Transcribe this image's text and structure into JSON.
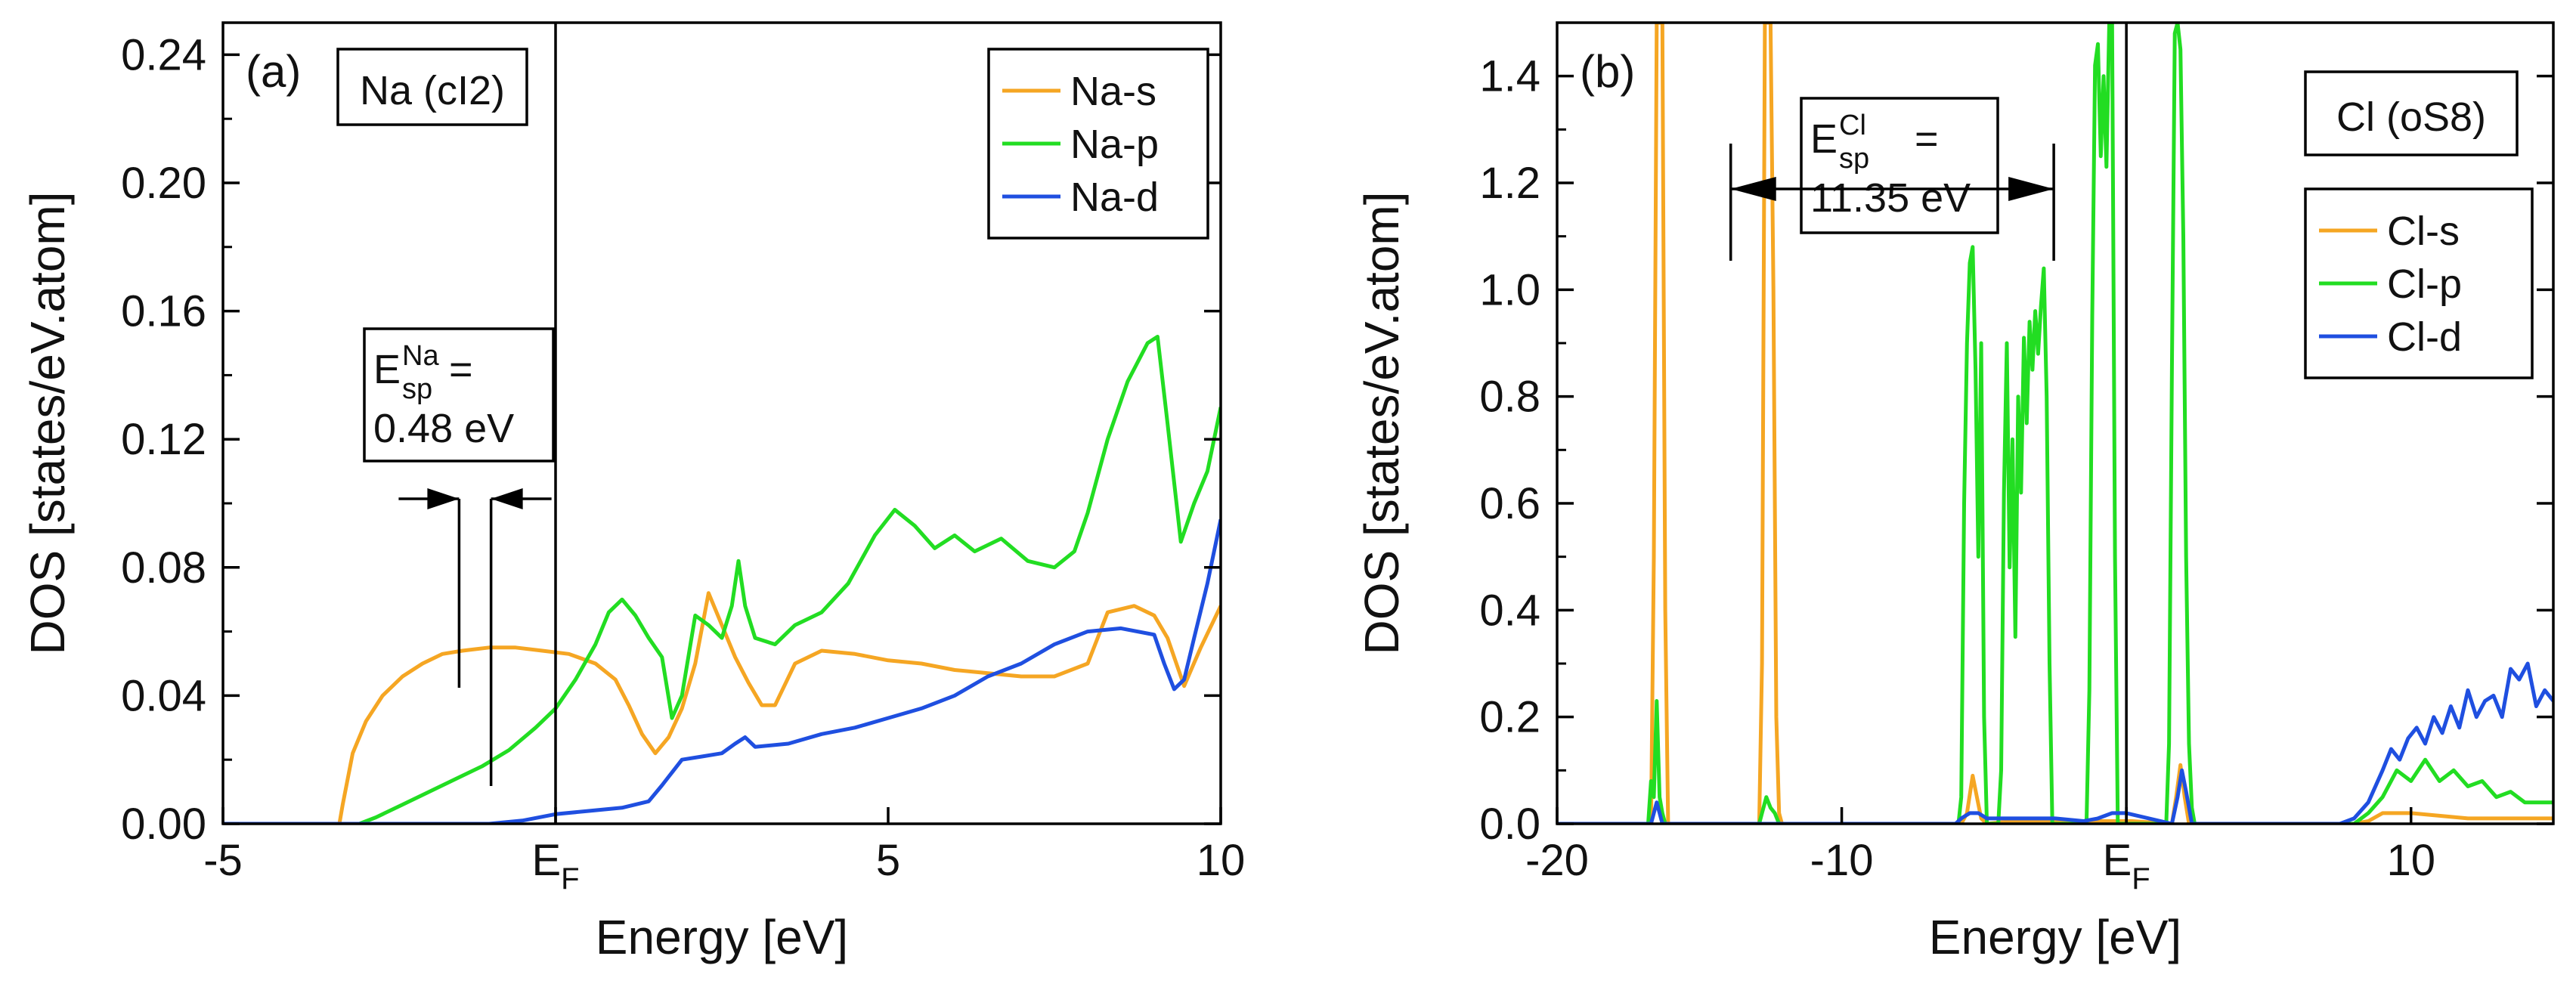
{
  "chart_data": [
    {
      "type": "line",
      "panel_label": "(a)",
      "structure_label": "Na (cI2)",
      "xlabel": "Energy [eV]",
      "ylabel": "DOS [states/eV.atom]",
      "xlim": [
        -5,
        10
      ],
      "ylim": [
        0,
        0.25
      ],
      "x_ticks": [
        -5,
        0,
        5,
        10
      ],
      "x_tick_labels": [
        "-5",
        "E_F",
        "5",
        "10"
      ],
      "y_ticks": [
        0.0,
        0.04,
        0.08,
        0.12,
        0.16,
        0.2,
        0.24
      ],
      "y_tick_labels": [
        "0.00",
        "0.04",
        "0.08",
        "0.12",
        "0.16",
        "0.20",
        "0.24"
      ],
      "fermi_line_at": 0,
      "legend": [
        "Na-s",
        "Na-p",
        "Na-d"
      ],
      "gap_annotation": {
        "symbol": "E",
        "subscript": "sp",
        "superscript": "Na",
        "equals": "=",
        "value": "0.48 eV",
        "from": -1.45,
        "to": -0.97
      },
      "series": [
        {
          "name": "Na-s",
          "color": "#f5a623",
          "x": [
            -5,
            -3.25,
            -3.2,
            -3.05,
            -2.85,
            -2.6,
            -2.3,
            -2.0,
            -1.7,
            -1.4,
            -1.0,
            -0.6,
            -0.2,
            0.2,
            0.6,
            0.9,
            1.1,
            1.3,
            1.5,
            1.7,
            1.9,
            2.1,
            2.3,
            2.5,
            2.7,
            2.9,
            3.1,
            3.3,
            3.6,
            4.0,
            4.5,
            5.0,
            5.5,
            6.0,
            6.5,
            7.0,
            7.5,
            8.0,
            8.3,
            8.7,
            9.0,
            9.2,
            9.45,
            9.7,
            10
          ],
          "y": [
            0,
            0,
            0.006,
            0.022,
            0.032,
            0.04,
            0.046,
            0.05,
            0.053,
            0.054,
            0.055,
            0.055,
            0.054,
            0.053,
            0.05,
            0.045,
            0.037,
            0.028,
            0.022,
            0.027,
            0.036,
            0.05,
            0.072,
            0.062,
            0.052,
            0.044,
            0.037,
            0.037,
            0.05,
            0.054,
            0.053,
            0.051,
            0.05,
            0.048,
            0.047,
            0.046,
            0.046,
            0.05,
            0.066,
            0.068,
            0.065,
            0.058,
            0.043,
            0.055,
            0.068
          ]
        },
        {
          "name": "Na-p",
          "color": "#22dd22",
          "x": [
            -5,
            -2.95,
            -2.7,
            -2.3,
            -1.9,
            -1.5,
            -1.1,
            -0.7,
            -0.3,
            0.0,
            0.3,
            0.6,
            0.8,
            1.0,
            1.2,
            1.4,
            1.6,
            1.75,
            1.9,
            2.1,
            2.3,
            2.5,
            2.65,
            2.75,
            2.85,
            3.0,
            3.3,
            3.6,
            4.0,
            4.4,
            4.8,
            5.1,
            5.4,
            5.7,
            6.0,
            6.3,
            6.7,
            7.1,
            7.5,
            7.8,
            8.0,
            8.3,
            8.6,
            8.9,
            9.05,
            9.2,
            9.4,
            9.6,
            9.8,
            10
          ],
          "y": [
            0,
            0,
            0.002,
            0.006,
            0.01,
            0.014,
            0.018,
            0.023,
            0.03,
            0.036,
            0.045,
            0.056,
            0.066,
            0.07,
            0.065,
            0.058,
            0.052,
            0.033,
            0.04,
            0.065,
            0.062,
            0.058,
            0.068,
            0.082,
            0.068,
            0.058,
            0.056,
            0.062,
            0.066,
            0.075,
            0.09,
            0.098,
            0.093,
            0.086,
            0.09,
            0.085,
            0.089,
            0.082,
            0.08,
            0.085,
            0.097,
            0.12,
            0.138,
            0.15,
            0.152,
            0.125,
            0.088,
            0.1,
            0.11,
            0.13
          ]
        },
        {
          "name": "Na-d",
          "color": "#1f4fe0",
          "x": [
            -5,
            -1.0,
            -0.5,
            0.0,
            0.5,
            1.0,
            1.4,
            1.6,
            1.9,
            2.2,
            2.5,
            2.7,
            2.85,
            3.0,
            3.5,
            4.0,
            4.5,
            5.0,
            5.5,
            6.0,
            6.5,
            7.0,
            7.5,
            8.0,
            8.5,
            9.0,
            9.15,
            9.3,
            9.45,
            9.6,
            9.8,
            10
          ],
          "y": [
            0,
            0,
            0.001,
            0.003,
            0.004,
            0.005,
            0.007,
            0.012,
            0.02,
            0.021,
            0.022,
            0.025,
            0.027,
            0.024,
            0.025,
            0.028,
            0.03,
            0.033,
            0.036,
            0.04,
            0.046,
            0.05,
            0.056,
            0.06,
            0.061,
            0.059,
            0.05,
            0.042,
            0.045,
            0.058,
            0.075,
            0.095
          ]
        }
      ]
    },
    {
      "type": "line",
      "panel_label": "(b)",
      "structure_label": "Cl (oS8)",
      "xlabel": "Energy [eV]",
      "ylabel": "DOS [states/eV.atom]",
      "xlim": [
        -20,
        15
      ],
      "ylim": [
        0,
        1.5
      ],
      "x_ticks": [
        -20,
        -10,
        0,
        10
      ],
      "x_tick_labels": [
        "-20",
        "-10",
        "E_F",
        "10"
      ],
      "y_ticks": [
        0.0,
        0.2,
        0.4,
        0.6,
        0.8,
        1.0,
        1.2,
        1.4
      ],
      "y_tick_labels": [
        "0.0",
        "0.2",
        "0.4",
        "0.6",
        "0.8",
        "1.0",
        "1.2",
        "1.4"
      ],
      "fermi_line_at": 0,
      "legend": [
        "Cl-s",
        "Cl-p",
        "Cl-d"
      ],
      "gap_annotation": {
        "symbol": "E",
        "subscript": "sp",
        "superscript": "Cl",
        "equals": "=",
        "value": "11.35 eV",
        "from": -13.9,
        "to": -2.55
      },
      "series": [
        {
          "name": "Cl-s",
          "color": "#f5a623",
          "x": [
            -20,
            -16.7,
            -16.6,
            -16.5,
            -16.4,
            -16.3,
            -16.2,
            -16.1,
            -12.9,
            -12.8,
            -12.7,
            -12.6,
            -12.5,
            -12.4,
            -12.3,
            -12.2,
            -12.1,
            -5.8,
            -5.6,
            -5.4,
            -5.25,
            -5.1,
            -4.9,
            -4.0,
            0.2,
            1.6,
            1.75,
            1.9,
            2.05,
            2.2,
            8.0,
            8.5,
            9.0,
            10.0,
            12.0,
            15
          ],
          "y": [
            0,
            0,
            0.5,
            1.5,
            1.5,
            1.5,
            0.4,
            0,
            0,
            0.3,
            1.5,
            1.5,
            1.5,
            1.0,
            0.2,
            0.02,
            0,
            0,
            0.02,
            0.09,
            0.05,
            0.01,
            0,
            0.005,
            0.005,
            0,
            0.05,
            0.11,
            0.05,
            0,
            0,
            0.005,
            0.02,
            0.02,
            0.01,
            0.01
          ]
        },
        {
          "name": "Cl-p",
          "color": "#22dd22",
          "x": [
            -20,
            -16.8,
            -16.7,
            -16.6,
            -16.5,
            -16.4,
            -16.3,
            -16.2,
            -12.9,
            -12.8,
            -12.65,
            -12.5,
            -12.35,
            -12.2,
            -5.9,
            -5.8,
            -5.7,
            -5.6,
            -5.5,
            -5.4,
            -5.3,
            -5.2,
            -5.1,
            -5.0,
            -4.9,
            -4.5,
            -4.4,
            -4.3,
            -4.2,
            -4.1,
            -4.0,
            -3.9,
            -3.8,
            -3.7,
            -3.6,
            -3.5,
            -3.4,
            -3.3,
            -3.2,
            -3.1,
            -3.0,
            -2.9,
            -2.8,
            -2.7,
            -2.6,
            -1.4,
            -1.3,
            -1.2,
            -1.1,
            -1.0,
            -0.9,
            -0.8,
            -0.7,
            -0.6,
            -0.5,
            -0.4,
            -0.3,
            1.4,
            1.5,
            1.6,
            1.7,
            1.8,
            1.9,
            2.0,
            2.1,
            2.2,
            2.3,
            2.4,
            8.0,
            8.5,
            9.0,
            9.5,
            10.0,
            10.5,
            11.0,
            11.5,
            12.0,
            12.5,
            13.0,
            13.5,
            14.0,
            15
          ],
          "y": [
            0,
            0,
            0.08,
            0.05,
            0.23,
            0.05,
            0.02,
            0,
            0,
            0.02,
            0.05,
            0.03,
            0.02,
            0,
            0,
            0.05,
            0.6,
            0.9,
            1.05,
            1.08,
            0.85,
            0.5,
            0.9,
            0.2,
            0,
            0,
            0.1,
            0.62,
            0.9,
            0.48,
            0.72,
            0.35,
            0.8,
            0.62,
            0.91,
            0.75,
            0.94,
            0.85,
            0.96,
            0.88,
            0.97,
            1.04,
            0.8,
            0.3,
            0,
            0,
            0.25,
            0.95,
            1.42,
            1.46,
            1.25,
            1.4,
            1.23,
            1.5,
            1.5,
            0.5,
            0,
            0,
            0.15,
            0.85,
            1.48,
            1.5,
            1.45,
            1.1,
            0.5,
            0.15,
            0.03,
            0,
            0,
            0.02,
            0.05,
            0.1,
            0.08,
            0.12,
            0.08,
            0.1,
            0.07,
            0.08,
            0.05,
            0.06,
            0.04,
            0.04
          ]
        },
        {
          "name": "Cl-d",
          "color": "#1f4fe0",
          "x": [
            -20,
            -16.7,
            -16.6,
            -16.5,
            -16.4,
            -16.3,
            -6.0,
            -5.8,
            -5.5,
            -5.2,
            -4.9,
            -4.5,
            -4.0,
            -3.5,
            -3.0,
            -2.5,
            -1.5,
            -1.0,
            -0.5,
            0.0,
            1.6,
            1.8,
            1.95,
            2.1,
            2.3,
            7.5,
            8.0,
            8.5,
            9.0,
            9.3,
            9.6,
            9.9,
            10.2,
            10.5,
            10.8,
            11.1,
            11.4,
            11.7,
            12.0,
            12.3,
            12.6,
            12.9,
            13.2,
            13.5,
            13.8,
            14.1,
            14.4,
            14.7,
            15
          ],
          "y": [
            0,
            0,
            0.02,
            0.04,
            0.02,
            0,
            0,
            0.01,
            0.02,
            0.02,
            0.01,
            0.01,
            0.01,
            0.01,
            0.01,
            0.01,
            0.005,
            0.01,
            0.02,
            0.02,
            0,
            0.05,
            0.1,
            0.06,
            0,
            0,
            0.01,
            0.04,
            0.1,
            0.14,
            0.12,
            0.16,
            0.18,
            0.15,
            0.2,
            0.17,
            0.22,
            0.18,
            0.25,
            0.2,
            0.23,
            0.24,
            0.2,
            0.29,
            0.27,
            0.3,
            0.22,
            0.25,
            0.23
          ]
        }
      ]
    }
  ]
}
